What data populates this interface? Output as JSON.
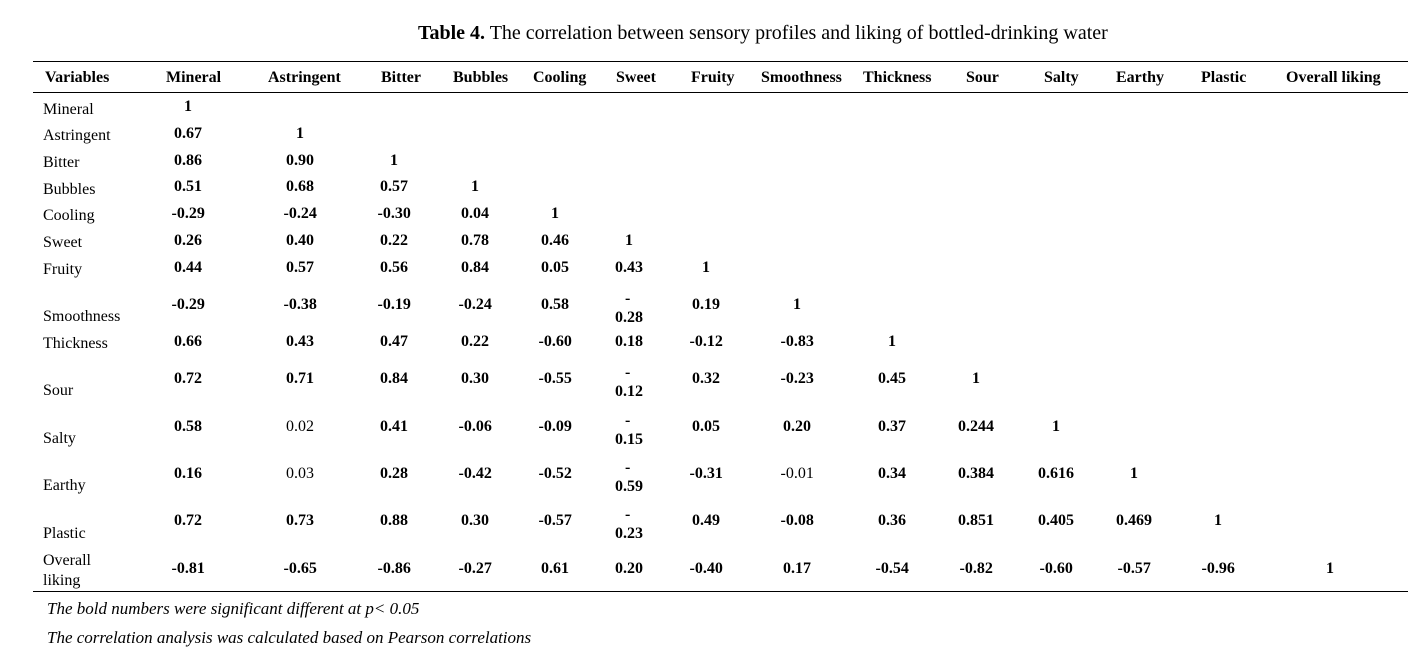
{
  "caption": {
    "label": "Table 4.",
    "text": " The correlation between sensory profiles and liking of bottled-drinking water"
  },
  "headers": [
    "Variables",
    "Mineral",
    "Astringent",
    "Bitter",
    "Bubbles",
    "Cooling",
    "Sweet",
    "Fruity",
    "Smoothness",
    "Thickness",
    "Sour",
    "Salty",
    "Earthy",
    "Plastic",
    "Overall liking"
  ],
  "rows": [
    {
      "label": "Mineral",
      "cells": [
        {
          "v": "1",
          "b": true
        }
      ]
    },
    {
      "label": "Astringent",
      "cells": [
        {
          "v": "0.67",
          "b": true
        },
        {
          "v": "1",
          "b": true
        }
      ]
    },
    {
      "label": "Bitter",
      "cells": [
        {
          "v": "0.86",
          "b": true
        },
        {
          "v": "0.90",
          "b": true
        },
        {
          "v": "1",
          "b": true
        }
      ]
    },
    {
      "label": "Bubbles",
      "cells": [
        {
          "v": "0.51",
          "b": true
        },
        {
          "v": "0.68",
          "b": true
        },
        {
          "v": "0.57",
          "b": true
        },
        {
          "v": "1",
          "b": true
        }
      ]
    },
    {
      "label": "Cooling",
      "cells": [
        {
          "v": "-0.29",
          "b": true
        },
        {
          "v": "-0.24",
          "b": true
        },
        {
          "v": "-0.30",
          "b": true
        },
        {
          "v": "0.04",
          "b": true
        },
        {
          "v": "1",
          "b": true
        }
      ]
    },
    {
      "label": "Sweet",
      "cells": [
        {
          "v": "0.26",
          "b": true
        },
        {
          "v": "0.40",
          "b": true
        },
        {
          "v": "0.22",
          "b": true
        },
        {
          "v": "0.78",
          "b": true
        },
        {
          "v": "0.46",
          "b": true
        },
        {
          "v": "1",
          "b": true
        }
      ]
    },
    {
      "label": "Fruity",
      "cells": [
        {
          "v": "0.44",
          "b": true
        },
        {
          "v": "0.57",
          "b": true
        },
        {
          "v": "0.56",
          "b": true
        },
        {
          "v": "0.84",
          "b": true
        },
        {
          "v": "0.05",
          "b": true
        },
        {
          "v": "0.43",
          "b": true
        },
        {
          "v": "1",
          "b": true
        }
      ]
    },
    {
      "label": "Smoothness",
      "cells": [
        {
          "v": "-0.29",
          "b": true
        },
        {
          "v": "-0.38",
          "b": true
        },
        {
          "v": "-0.19",
          "b": true
        },
        {
          "v": "-0.24",
          "b": true
        },
        {
          "v": "0.58",
          "b": true
        },
        {
          "v": "-0.28",
          "b": true,
          "split": true
        },
        {
          "v": "0.19",
          "b": true
        },
        {
          "v": "1",
          "b": true
        }
      ]
    },
    {
      "label": "Thickness",
      "cells": [
        {
          "v": "0.66",
          "b": true
        },
        {
          "v": "0.43",
          "b": true
        },
        {
          "v": "0.47",
          "b": true
        },
        {
          "v": "0.22",
          "b": true
        },
        {
          "v": "-0.60",
          "b": true
        },
        {
          "v": "0.18",
          "b": true
        },
        {
          "v": "-0.12",
          "b": true
        },
        {
          "v": "-0.83",
          "b": true
        },
        {
          "v": "1",
          "b": true
        }
      ]
    },
    {
      "label": "Sour",
      "cells": [
        {
          "v": "0.72",
          "b": true
        },
        {
          "v": "0.71",
          "b": true
        },
        {
          "v": "0.84",
          "b": true
        },
        {
          "v": "0.30",
          "b": true
        },
        {
          "v": "-0.55",
          "b": true
        },
        {
          "v": "-0.12",
          "b": true,
          "split": true
        },
        {
          "v": "0.32",
          "b": true
        },
        {
          "v": "-0.23",
          "b": true
        },
        {
          "v": "0.45",
          "b": true
        },
        {
          "v": "1",
          "b": true
        }
      ]
    },
    {
      "label": "Salty",
      "cells": [
        {
          "v": "0.58",
          "b": true
        },
        {
          "v": "0.02",
          "b": false
        },
        {
          "v": "0.41",
          "b": true
        },
        {
          "v": "-0.06",
          "b": true
        },
        {
          "v": "-0.09",
          "b": true
        },
        {
          "v": "-0.15",
          "b": true,
          "split": true
        },
        {
          "v": "0.05",
          "b": true
        },
        {
          "v": "0.20",
          "b": true
        },
        {
          "v": "0.37",
          "b": true
        },
        {
          "v": "0.244",
          "b": true
        },
        {
          "v": "1",
          "b": true
        }
      ]
    },
    {
      "label": "Earthy",
      "cells": [
        {
          "v": "0.16",
          "b": true
        },
        {
          "v": "0.03",
          "b": false
        },
        {
          "v": "0.28",
          "b": true
        },
        {
          "v": "-0.42",
          "b": true
        },
        {
          "v": "-0.52",
          "b": true
        },
        {
          "v": "-0.59",
          "b": true,
          "split": true
        },
        {
          "v": "-0.31",
          "b": true
        },
        {
          "v": "-0.01",
          "b": false
        },
        {
          "v": "0.34",
          "b": true
        },
        {
          "v": "0.384",
          "b": true
        },
        {
          "v": "0.616",
          "b": true
        },
        {
          "v": "1",
          "b": true
        }
      ]
    },
    {
      "label": "Plastic",
      "cells": [
        {
          "v": "0.72",
          "b": true
        },
        {
          "v": "0.73",
          "b": true
        },
        {
          "v": "0.88",
          "b": true
        },
        {
          "v": "0.30",
          "b": true
        },
        {
          "v": "-0.57",
          "b": true
        },
        {
          "v": "-0.23",
          "b": true,
          "split": true
        },
        {
          "v": "0.49",
          "b": true
        },
        {
          "v": "-0.08",
          "b": true
        },
        {
          "v": "0.36",
          "b": true
        },
        {
          "v": "0.851",
          "b": true
        },
        {
          "v": "0.405",
          "b": true
        },
        {
          "v": "0.469",
          "b": true
        },
        {
          "v": "1",
          "b": true
        }
      ]
    },
    {
      "label": "Overall liking",
      "cells": [
        {
          "v": "-0.81",
          "b": true
        },
        {
          "v": "-0.65",
          "b": true
        },
        {
          "v": "-0.86",
          "b": true
        },
        {
          "v": "-0.27",
          "b": true
        },
        {
          "v": "0.61",
          "b": true
        },
        {
          "v": "0.20",
          "b": true
        },
        {
          "v": "-0.40",
          "b": true
        },
        {
          "v": "0.17",
          "b": true
        },
        {
          "v": "-0.54",
          "b": true
        },
        {
          "v": "-0.82",
          "b": true
        },
        {
          "v": "-0.60",
          "b": true
        },
        {
          "v": "-0.57",
          "b": true
        },
        {
          "v": "-0.96",
          "b": true
        },
        {
          "v": "1",
          "b": true
        }
      ]
    }
  ],
  "notes": [
    "The bold numbers were significant different at p< 0.05",
    "The correlation analysis was calculated based on Pearson correlations"
  ]
}
